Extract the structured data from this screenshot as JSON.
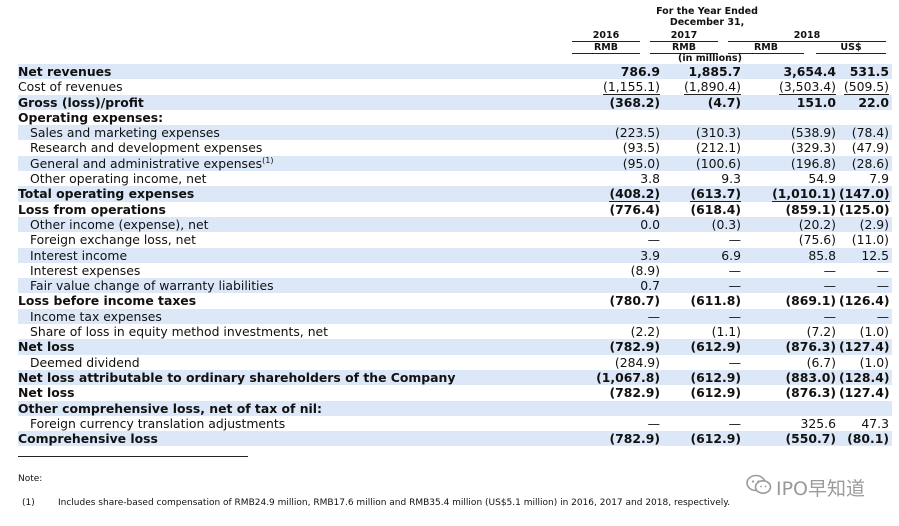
{
  "header": {
    "period_title_line1": "For the Year Ended",
    "period_title_line2": "December 31,",
    "in_millions": "(in millions)",
    "years": [
      "2016",
      "2017",
      "2018"
    ],
    "currencies": [
      "RMB",
      "RMB",
      "RMB",
      "US$"
    ]
  },
  "rows": [
    {
      "label": "Net revenues",
      "values": [
        "786.9",
        "1,885.7",
        "3,654.4",
        "531.5"
      ]
    },
    {
      "label": "Cost of revenues",
      "values": [
        "(1,155.1)",
        "(1,890.4)",
        "(3,503.4)",
        "(509.5)"
      ]
    },
    {
      "label": "Gross (loss)/profit",
      "values": [
        "(368.2)",
        "(4.7)",
        "151.0",
        "22.0"
      ]
    },
    {
      "label": "Operating expenses:",
      "values": [
        "",
        "",
        "",
        ""
      ]
    },
    {
      "label": "Sales and marketing expenses",
      "values": [
        "(223.5)",
        "(310.3)",
        "(538.9)",
        "(78.4)"
      ]
    },
    {
      "label": "Research and development expenses",
      "values": [
        "(93.5)",
        "(212.1)",
        "(329.3)",
        "(47.9)"
      ]
    },
    {
      "label": "General and administrative expenses",
      "sup": "(1)",
      "values": [
        "(95.0)",
        "(100.6)",
        "(196.8)",
        "(28.6)"
      ]
    },
    {
      "label": "Other operating income, net",
      "values": [
        "3.8",
        "9.3",
        "54.9",
        "7.9"
      ]
    },
    {
      "label": "Total operating expenses",
      "values": [
        "(408.2)",
        "(613.7)",
        "(1,010.1)",
        "(147.0)"
      ]
    },
    {
      "label": "Loss from operations",
      "values": [
        "(776.4)",
        "(618.4)",
        "(859.1)",
        "(125.0)"
      ]
    },
    {
      "label": "Other income (expense), net",
      "values": [
        "0.0",
        "(0.3)",
        "(20.2)",
        "(2.9)"
      ]
    },
    {
      "label": "Foreign exchange loss, net",
      "values": [
        "—",
        "—",
        "(75.6)",
        "(11.0)"
      ]
    },
    {
      "label": "Interest income",
      "values": [
        "3.9",
        "6.9",
        "85.8",
        "12.5"
      ]
    },
    {
      "label": "Interest expenses",
      "values": [
        "(8.9)",
        "—",
        "—",
        "—"
      ]
    },
    {
      "label": "Fair value change of warranty liabilities",
      "values": [
        "0.7",
        "—",
        "—",
        "—"
      ]
    },
    {
      "label": "Loss before income taxes",
      "values": [
        "(780.7)",
        "(611.8)",
        "(869.1)",
        "(126.4)"
      ]
    },
    {
      "label": "Income tax expenses",
      "values": [
        "—",
        "—",
        "—",
        "—"
      ]
    },
    {
      "label": "Share of loss in equity method investments, net",
      "values": [
        "(2.2)",
        "(1.1)",
        "(7.2)",
        "(1.0)"
      ]
    },
    {
      "label": "Net loss",
      "values": [
        "(782.9)",
        "(612.9)",
        "(876.3)",
        "(127.4)"
      ]
    },
    {
      "label": "Deemed dividend",
      "values": [
        "(284.9)",
        "—",
        "(6.7)",
        "(1.0)"
      ]
    },
    {
      "label": "Net loss attributable to ordinary shareholders of the Company",
      "values": [
        "(1,067.8)",
        "(612.9)",
        "(883.0)",
        "(128.4)"
      ]
    },
    {
      "label": "Net loss",
      "values": [
        "(782.9)",
        "(612.9)",
        "(876.3)",
        "(127.4)"
      ]
    },
    {
      "label": "Other comprehensive loss, net of tax of nil:",
      "values": [
        "",
        "",
        "",
        ""
      ]
    },
    {
      "label": "Foreign currency translation adjustments",
      "values": [
        "—",
        "—",
        "325.6",
        "47.3"
      ]
    },
    {
      "label": "Comprehensive loss",
      "values": [
        "(782.9)",
        "(612.9)",
        "(550.7)",
        "(80.1)"
      ]
    }
  ],
  "note": {
    "label": "Note:",
    "footnote_number": "(1)",
    "footnote_text": "Includes share-based compensation of RMB24.9 million, RMB17.6 million and RMB35.4 million (US$5.1 million) in 2016, 2017 and 2018, respectively."
  },
  "watermark": {
    "icon": "wechat-icon",
    "text": "IPO早知道"
  }
}
